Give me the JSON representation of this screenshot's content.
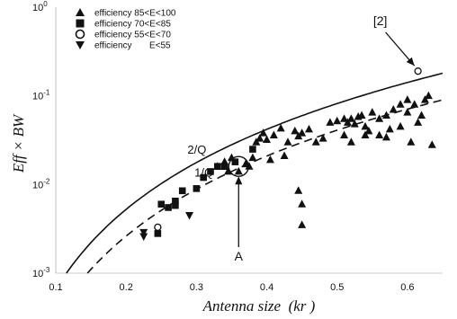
{
  "chart_data": {
    "type": "scatter",
    "xlabel": "Antenna size  (kr )",
    "ylabel": "Eff × BW",
    "xlim": [
      0.1,
      0.65
    ],
    "ylim": [
      0.001,
      1
    ],
    "yscale": "log",
    "grid": false,
    "legend_position": "top-left",
    "x_ticks": [
      "0.1",
      "0.2",
      "0.3",
      "0.4",
      "0.5",
      "0.6"
    ],
    "y_ticks": [
      {
        "base": "10",
        "exp": "0"
      },
      {
        "base": "10",
        "exp": "-1"
      },
      {
        "base": "10",
        "exp": "-2"
      },
      {
        "base": "10",
        "exp": "-3"
      }
    ],
    "series": [
      {
        "name": "efficiency 85<E<100",
        "marker": "triangle-up",
        "points": [
          [
            0.33,
            0.016
          ],
          [
            0.34,
            0.018
          ],
          [
            0.345,
            0.014
          ],
          [
            0.35,
            0.02
          ],
          [
            0.36,
            0.014
          ],
          [
            0.37,
            0.017
          ],
          [
            0.375,
            0.016
          ],
          [
            0.38,
            0.02
          ],
          [
            0.385,
            0.03
          ],
          [
            0.39,
            0.033
          ],
          [
            0.395,
            0.038
          ],
          [
            0.4,
            0.032
          ],
          [
            0.41,
            0.036
          ],
          [
            0.42,
            0.043
          ],
          [
            0.43,
            0.03
          ],
          [
            0.44,
            0.04
          ],
          [
            0.445,
            0.035
          ],
          [
            0.45,
            0.038
          ],
          [
            0.46,
            0.042
          ],
          [
            0.47,
            0.03
          ],
          [
            0.48,
            0.033
          ],
          [
            0.49,
            0.05
          ],
          [
            0.5,
            0.052
          ],
          [
            0.51,
            0.055
          ],
          [
            0.515,
            0.05
          ],
          [
            0.52,
            0.055
          ],
          [
            0.525,
            0.048
          ],
          [
            0.53,
            0.058
          ],
          [
            0.535,
            0.06
          ],
          [
            0.54,
            0.045
          ],
          [
            0.545,
            0.04
          ],
          [
            0.55,
            0.065
          ],
          [
            0.56,
            0.055
          ],
          [
            0.57,
            0.06
          ],
          [
            0.575,
            0.042
          ],
          [
            0.58,
            0.07
          ],
          [
            0.59,
            0.08
          ],
          [
            0.6,
            0.09
          ],
          [
            0.61,
            0.08
          ],
          [
            0.615,
            0.05
          ],
          [
            0.62,
            0.06
          ],
          [
            0.625,
            0.09
          ],
          [
            0.63,
            0.1
          ],
          [
            0.635,
            0.028
          ],
          [
            0.59,
            0.045
          ],
          [
            0.605,
            0.03
          ],
          [
            0.56,
            0.036
          ],
          [
            0.57,
            0.034
          ],
          [
            0.445,
            0.0085
          ],
          [
            0.45,
            0.006
          ],
          [
            0.45,
            0.0035
          ],
          [
            0.425,
            0.021
          ],
          [
            0.405,
            0.019
          ],
          [
            0.52,
            0.03
          ],
          [
            0.51,
            0.036
          ],
          [
            0.54,
            0.036
          ],
          [
            0.6,
            0.065
          ]
        ]
      },
      {
        "name": "efficiency 70<E<85",
        "marker": "square",
        "points": [
          [
            0.25,
            0.006
          ],
          [
            0.26,
            0.0055
          ],
          [
            0.27,
            0.0065
          ],
          [
            0.27,
            0.0058
          ],
          [
            0.28,
            0.0085
          ],
          [
            0.3,
            0.009
          ],
          [
            0.31,
            0.012
          ],
          [
            0.32,
            0.014
          ],
          [
            0.33,
            0.016
          ],
          [
            0.34,
            0.016
          ],
          [
            0.355,
            0.018
          ],
          [
            0.38,
            0.025
          ],
          [
            0.245,
            0.0028
          ]
        ]
      },
      {
        "name": "efficiency 55<E<70",
        "marker": "circle-open",
        "points": [
          [
            0.245,
            0.0033
          ],
          [
            0.615,
            0.19
          ]
        ]
      },
      {
        "name": "efficiency       E<55",
        "marker": "triangle-down",
        "points": [
          [
            0.225,
            0.0029
          ],
          [
            0.225,
            0.0026
          ],
          [
            0.29,
            0.0045
          ]
        ]
      }
    ],
    "curves": [
      {
        "label": "2/Q",
        "style": "solid",
        "k": 0.655
      },
      {
        "label": "1/Q",
        "style": "dashed",
        "k": 0.3275
      }
    ],
    "annotations": [
      {
        "text": "A",
        "target": [
          0.36,
          0.016
        ]
      },
      {
        "text": "[2]",
        "target": [
          0.615,
          0.19
        ]
      }
    ]
  }
}
